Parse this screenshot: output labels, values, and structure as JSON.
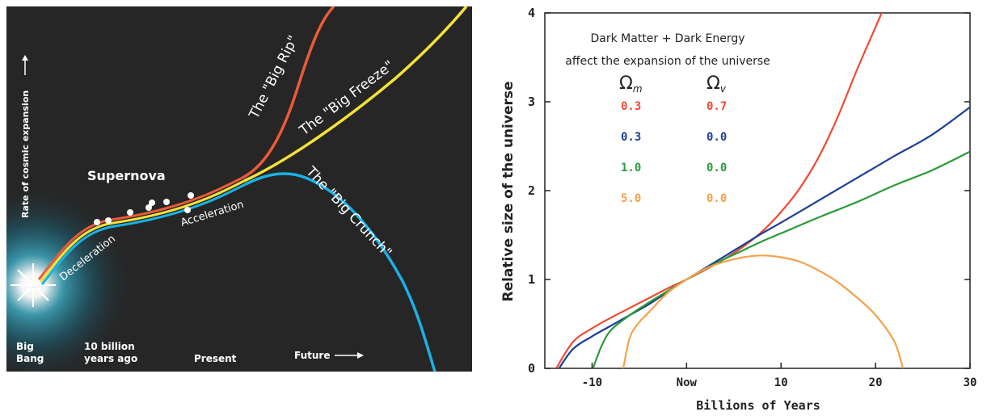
{
  "colors": {
    "left_bg": "#262626",
    "glow": "#1a7f96",
    "big_rip": "#ec5a3a",
    "big_freeze": "#f5e235",
    "big_crunch": "#1ab2e6",
    "text_light": "#ffffff",
    "red": "#f04a32",
    "blue": "#1b3f96",
    "green": "#2a9a3a",
    "orange": "#f5a24a"
  },
  "diagram": {
    "ylabel": "Rate of cosmic expansion",
    "labels": {
      "big_rip": "The \"Big Rip\"",
      "big_freeze": "The \"Big Freeze\"",
      "big_crunch": "The \"Big Crunch\"",
      "supernova": "Supernova",
      "deceleration": "Deceleration",
      "acceleration": "Acceleration"
    },
    "time_labels": {
      "big_bang_1": "Big",
      "big_bang_2": "Bang",
      "ago_1": "10 billion",
      "ago_2": "years ago",
      "present": "Present",
      "future": "Future"
    }
  },
  "chart_data": {
    "type": "line",
    "xlabel": "Billions of Years",
    "ylabel": "Relative size of the universe",
    "xlim": [
      -15,
      30
    ],
    "ylim": [
      0,
      4
    ],
    "x_ticks": [
      "-10",
      "Now",
      "10",
      "20",
      "30"
    ],
    "y_ticks": [
      "0",
      "1",
      "2",
      "3",
      "4"
    ],
    "legend_title_1": "Dark Matter + Dark Energy",
    "legend_title_2": "affect the expansion of the universe",
    "legend_col1_header": "Ω",
    "legend_col1_sub": "m",
    "legend_col2_header": "Ω",
    "legend_col2_sub": "v",
    "series": [
      {
        "omega_m": "0.3",
        "omega_v": "0.7",
        "color": "#f04a32",
        "x": [
          -13.8,
          -12,
          -10,
          -8,
          -6,
          -4,
          -2,
          0,
          2,
          4,
          6,
          8,
          10,
          12,
          14,
          16,
          18,
          20,
          21.8
        ],
        "y": [
          0,
          0.3,
          0.45,
          0.57,
          0.68,
          0.79,
          0.9,
          1.0,
          1.11,
          1.23,
          1.37,
          1.54,
          1.76,
          2.03,
          2.38,
          2.83,
          3.35,
          3.84,
          4.28
        ]
      },
      {
        "omega_m": "0.3",
        "omega_v": "0.0",
        "color": "#1b3f96",
        "x": [
          -13.5,
          -12,
          -10,
          -8,
          -6,
          -4,
          -2,
          0,
          2,
          4,
          6,
          8,
          10,
          14,
          18,
          22,
          26,
          30
        ],
        "y": [
          0,
          0.22,
          0.36,
          0.48,
          0.6,
          0.72,
          0.86,
          1.0,
          1.13,
          1.26,
          1.39,
          1.52,
          1.64,
          1.89,
          2.14,
          2.39,
          2.63,
          2.94
        ]
      },
      {
        "omega_m": "1.0",
        "omega_v": "0.0",
        "color": "#2a9a3a",
        "x": [
          -9.9,
          -9,
          -8,
          -6,
          -4,
          -2,
          0,
          2,
          4,
          6,
          8,
          10,
          14,
          18,
          22,
          26,
          30
        ],
        "y": [
          0,
          0.25,
          0.43,
          0.6,
          0.74,
          0.87,
          1.0,
          1.12,
          1.23,
          1.33,
          1.43,
          1.52,
          1.7,
          1.87,
          2.06,
          2.23,
          2.44
        ]
      },
      {
        "omega_m": "5.0",
        "omega_v": "0.0",
        "color": "#f5a24a",
        "x": [
          -6.7,
          -6,
          -5,
          -4,
          -2,
          0,
          2,
          4,
          6,
          8,
          10,
          12,
          14,
          16,
          18,
          20,
          22,
          22.9
        ],
        "y": [
          0,
          0.35,
          0.52,
          0.63,
          0.85,
          1.0,
          1.12,
          1.2,
          1.25,
          1.27,
          1.25,
          1.2,
          1.1,
          0.97,
          0.8,
          0.6,
          0.3,
          0
        ]
      }
    ]
  }
}
